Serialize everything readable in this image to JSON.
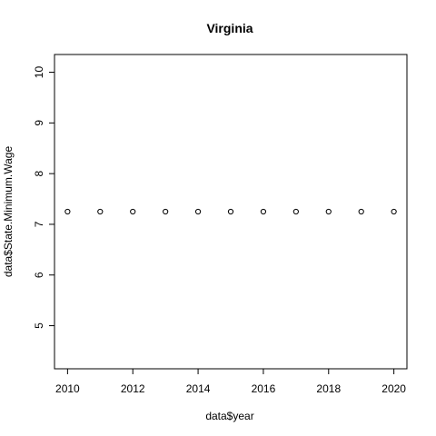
{
  "chart_data": {
    "type": "scatter",
    "title": "Virginia",
    "xlabel": "data$year",
    "ylabel": "data$State.Minimum.Wage",
    "xlim": [
      2009.6,
      2020.4
    ],
    "ylim": [
      4.15,
      10.35
    ],
    "x_ticks": [
      2010,
      2012,
      2014,
      2016,
      2018,
      2020
    ],
    "y_ticks": [
      5,
      6,
      7,
      8,
      9,
      10
    ],
    "grid": false,
    "series": [
      {
        "x": [
          2010,
          2011,
          2012,
          2013,
          2014,
          2015,
          2016,
          2017,
          2018,
          2019,
          2020
        ],
        "y": [
          7.25,
          7.25,
          7.25,
          7.25,
          7.25,
          7.25,
          7.25,
          7.25,
          7.25,
          7.25,
          7.25
        ],
        "marker": "open-circle",
        "color": "#000000"
      }
    ]
  }
}
